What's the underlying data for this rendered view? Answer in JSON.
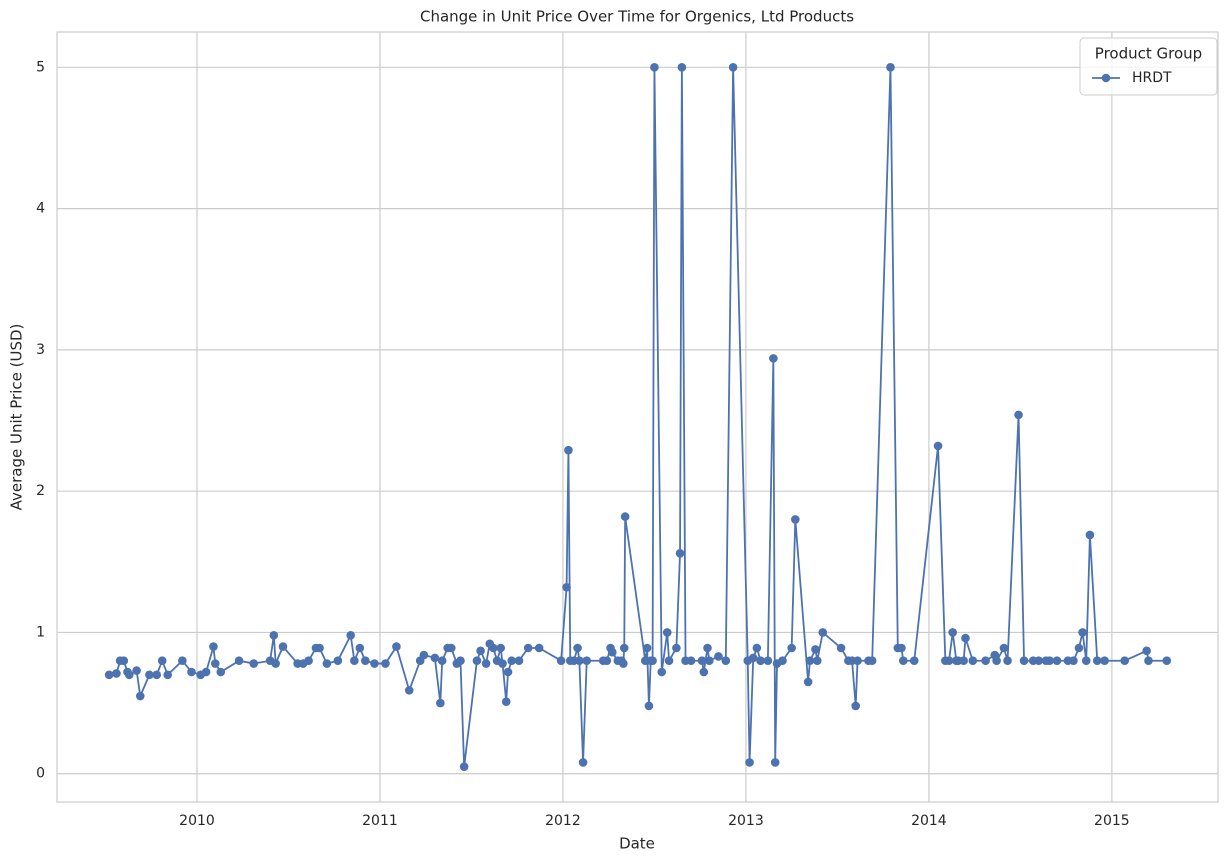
{
  "chart_data": {
    "type": "line",
    "title": "Change in Unit Price Over Time for Orgenics, Ltd Products",
    "x_label": "Date",
    "y_label": "Average Unit Price (USD)",
    "legend_title": "Product Group",
    "legend_position": "upper right",
    "grid": true,
    "xlim": [
      2009.235,
      2015.58
    ],
    "xticks": [
      2010,
      2011,
      2012,
      2013,
      2014,
      2015
    ],
    "ylim": [
      -0.2,
      5.25
    ],
    "yticks": [
      0,
      1,
      2,
      3,
      4,
      5
    ],
    "x": [
      2009.52,
      2009.56,
      2009.58,
      2009.6,
      2009.62,
      2009.63,
      2009.67,
      2009.69,
      2009.74,
      2009.78,
      2009.81,
      2009.84,
      2009.92,
      2009.97,
      2010.02,
      2010.05,
      2010.09,
      2010.1,
      2010.13,
      2010.23,
      2010.31,
      2010.4,
      2010.42,
      2010.43,
      2010.47,
      2010.55,
      2010.58,
      2010.61,
      2010.65,
      2010.67,
      2010.71,
      2010.77,
      2010.84,
      2010.86,
      2010.89,
      2010.92,
      2010.97,
      2011.03,
      2011.09,
      2011.16,
      2011.22,
      2011.24,
      2011.3,
      2011.33,
      2011.34,
      2011.37,
      2011.39,
      2011.42,
      2011.44,
      2011.46,
      2011.53,
      2011.55,
      2011.58,
      2011.6,
      2011.62,
      2011.64,
      2011.66,
      2011.67,
      2011.69,
      2011.7,
      2011.72,
      2011.76,
      2011.81,
      2011.87,
      2011.99,
      2012.02,
      2012.03,
      2012.04,
      2012.06,
      2012.08,
      2012.09,
      2012.11,
      2012.13,
      2012.22,
      2012.24,
      2012.26,
      2012.27,
      2012.3,
      2012.32,
      2012.33,
      2012.335,
      2012.34,
      2012.45,
      2012.46,
      2012.47,
      2012.48,
      2012.49,
      2012.5,
      2012.54,
      2012.57,
      2012.58,
      2012.62,
      2012.64,
      2012.65,
      2012.67,
      2012.7,
      2012.76,
      2012.77,
      2012.79,
      2012.8,
      2012.85,
      2012.89,
      2012.93,
      2013.01,
      2013.02,
      2013.04,
      2013.06,
      2013.08,
      2013.12,
      2013.15,
      2013.16,
      2013.17,
      2013.2,
      2013.25,
      2013.27,
      2013.34,
      2013.35,
      2013.38,
      2013.39,
      2013.42,
      2013.52,
      2013.56,
      2013.58,
      2013.6,
      2013.61,
      2013.67,
      2013.69,
      2013.79,
      2013.83,
      2013.85,
      2013.86,
      2013.92,
      2014.05,
      2014.09,
      2014.11,
      2014.13,
      2014.15,
      2014.16,
      2014.19,
      2014.2,
      2014.24,
      2014.31,
      2014.36,
      2014.37,
      2014.41,
      2014.43,
      2014.49,
      2014.52,
      2014.57,
      2014.6,
      2014.64,
      2014.66,
      2014.7,
      2014.76,
      2014.79,
      2014.82,
      2014.84,
      2014.86,
      2014.88,
      2014.92,
      2014.96,
      2015.07,
      2015.19,
      2015.2,
      2015.3
    ],
    "series": [
      {
        "name": "HRDT",
        "color": "#4c72b0",
        "values": [
          0.7,
          0.71,
          0.8,
          0.8,
          0.72,
          0.7,
          0.73,
          0.55,
          0.7,
          0.7,
          0.8,
          0.7,
          0.8,
          0.72,
          0.7,
          0.72,
          0.9,
          0.78,
          0.72,
          0.8,
          0.78,
          0.8,
          0.98,
          0.78,
          0.9,
          0.78,
          0.78,
          0.8,
          0.89,
          0.89,
          0.78,
          0.8,
          0.98,
          0.8,
          0.89,
          0.8,
          0.78,
          0.78,
          0.9,
          0.59,
          0.8,
          0.84,
          0.82,
          0.5,
          0.8,
          0.89,
          0.89,
          0.78,
          0.8,
          0.05,
          0.8,
          0.87,
          0.78,
          0.92,
          0.89,
          0.8,
          0.89,
          0.78,
          0.51,
          0.72,
          0.8,
          0.8,
          0.89,
          0.89,
          0.8,
          1.32,
          2.29,
          0.8,
          0.8,
          0.89,
          0.8,
          0.08,
          0.8,
          0.8,
          0.8,
          0.89,
          0.86,
          0.8,
          0.8,
          0.78,
          0.89,
          1.82,
          0.8,
          0.89,
          0.48,
          0.8,
          0.8,
          5.0,
          0.72,
          1.0,
          0.8,
          0.89,
          1.56,
          5.0,
          0.8,
          0.8,
          0.8,
          0.72,
          0.89,
          0.8,
          0.83,
          0.8,
          5.0,
          0.8,
          0.08,
          0.82,
          0.89,
          0.8,
          0.8,
          2.94,
          0.08,
          0.78,
          0.8,
          0.89,
          1.8,
          0.65,
          0.8,
          0.88,
          0.8,
          1.0,
          0.89,
          0.8,
          0.8,
          0.48,
          0.8,
          0.8,
          0.8,
          5.0,
          0.89,
          0.89,
          0.8,
          0.8,
          2.32,
          0.8,
          0.8,
          1.0,
          0.8,
          0.8,
          0.8,
          0.96,
          0.8,
          0.8,
          0.84,
          0.8,
          0.89,
          0.8,
          2.54,
          0.8,
          0.8,
          0.8,
          0.8,
          0.8,
          0.8,
          0.8,
          0.8,
          0.89,
          1.0,
          0.8,
          1.69,
          0.8,
          0.8,
          0.8,
          0.87,
          0.8,
          0.8
        ]
      }
    ]
  }
}
